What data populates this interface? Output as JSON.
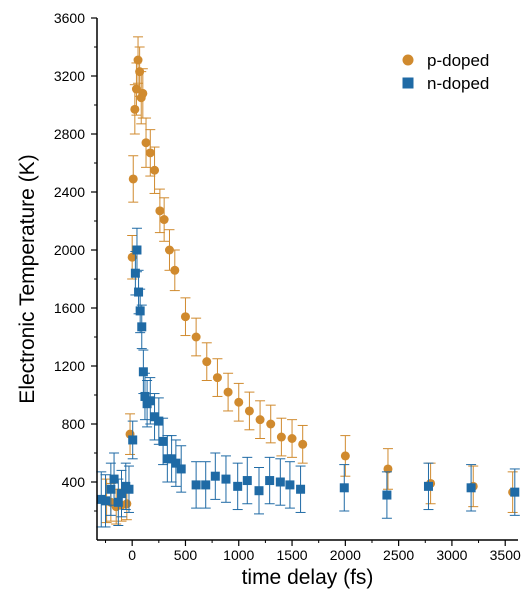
{
  "chart_data": {
    "type": "scatter",
    "title": "",
    "xlabel": "time delay (fs)",
    "ylabel": "Electronic Temperature (K)",
    "xlim": [
      -330,
      3620
    ],
    "ylim": [
      0,
      3600
    ],
    "grid": false,
    "legend_position": "top-right",
    "x_ticks": [
      0,
      500,
      1000,
      1500,
      2000,
      2500,
      3000,
      3500
    ],
    "y_ticks": [
      400,
      800,
      1200,
      1600,
      2000,
      2400,
      2800,
      3200,
      3600
    ],
    "series": [
      {
        "name": "p-doped",
        "marker": "circle",
        "color": "#d08a2e",
        "points": [
          {
            "x": -240,
            "y": 270,
            "err": 150
          },
          {
            "x": -200,
            "y": 260,
            "err": 130
          },
          {
            "x": -150,
            "y": 230,
            "err": 120
          },
          {
            "x": -100,
            "y": 240,
            "err": 110
          },
          {
            "x": -50,
            "y": 250,
            "err": 110
          },
          {
            "x": -20,
            "y": 730,
            "err": 140
          },
          {
            "x": 0,
            "y": 1950,
            "err": 150
          },
          {
            "x": 10,
            "y": 2490,
            "err": 160
          },
          {
            "x": 25,
            "y": 2970,
            "err": 170
          },
          {
            "x": 40,
            "y": 3110,
            "err": 180
          },
          {
            "x": 55,
            "y": 3310,
            "err": 160
          },
          {
            "x": 70,
            "y": 3230,
            "err": 170
          },
          {
            "x": 85,
            "y": 3050,
            "err": 180
          },
          {
            "x": 100,
            "y": 3080,
            "err": 170
          },
          {
            "x": 130,
            "y": 2740,
            "err": 170
          },
          {
            "x": 170,
            "y": 2670,
            "err": 160
          },
          {
            "x": 210,
            "y": 2550,
            "err": 160
          },
          {
            "x": 260,
            "y": 2270,
            "err": 150
          },
          {
            "x": 300,
            "y": 2210,
            "err": 150
          },
          {
            "x": 350,
            "y": 2000,
            "err": 140
          },
          {
            "x": 400,
            "y": 1860,
            "err": 140
          },
          {
            "x": 500,
            "y": 1540,
            "err": 130
          },
          {
            "x": 600,
            "y": 1400,
            "err": 130
          },
          {
            "x": 700,
            "y": 1230,
            "err": 130
          },
          {
            "x": 800,
            "y": 1120,
            "err": 130
          },
          {
            "x": 900,
            "y": 1020,
            "err": 130
          },
          {
            "x": 1000,
            "y": 950,
            "err": 130
          },
          {
            "x": 1100,
            "y": 890,
            "err": 130
          },
          {
            "x": 1200,
            "y": 830,
            "err": 130
          },
          {
            "x": 1300,
            "y": 800,
            "err": 130
          },
          {
            "x": 1400,
            "y": 710,
            "err": 130
          },
          {
            "x": 1500,
            "y": 700,
            "err": 130
          },
          {
            "x": 1600,
            "y": 660,
            "err": 130
          },
          {
            "x": 2000,
            "y": 580,
            "err": 140
          },
          {
            "x": 2400,
            "y": 490,
            "err": 140
          },
          {
            "x": 2800,
            "y": 390,
            "err": 140
          },
          {
            "x": 3200,
            "y": 370,
            "err": 140
          },
          {
            "x": 3570,
            "y": 330,
            "err": 140
          }
        ]
      },
      {
        "name": "n-doped",
        "marker": "square",
        "color": "#1f6aa5",
        "points": [
          {
            "x": -290,
            "y": 280,
            "err": 190
          },
          {
            "x": -250,
            "y": 270,
            "err": 180
          },
          {
            "x": -200,
            "y": 350,
            "err": 180
          },
          {
            "x": -170,
            "y": 420,
            "err": 180
          },
          {
            "x": -130,
            "y": 260,
            "err": 160
          },
          {
            "x": -100,
            "y": 320,
            "err": 160
          },
          {
            "x": -60,
            "y": 370,
            "err": 160
          },
          {
            "x": -30,
            "y": 350,
            "err": 160
          },
          {
            "x": 5,
            "y": 690,
            "err": 130
          },
          {
            "x": 30,
            "y": 1840,
            "err": 150
          },
          {
            "x": 45,
            "y": 2000,
            "err": 150
          },
          {
            "x": 60,
            "y": 1710,
            "err": 150
          },
          {
            "x": 75,
            "y": 1580,
            "err": 150
          },
          {
            "x": 90,
            "y": 1470,
            "err": 150
          },
          {
            "x": 105,
            "y": 1160,
            "err": 150
          },
          {
            "x": 120,
            "y": 990,
            "err": 160
          },
          {
            "x": 140,
            "y": 940,
            "err": 160
          },
          {
            "x": 170,
            "y": 960,
            "err": 160
          },
          {
            "x": 210,
            "y": 850,
            "err": 160
          },
          {
            "x": 250,
            "y": 820,
            "err": 160
          },
          {
            "x": 290,
            "y": 680,
            "err": 160
          },
          {
            "x": 330,
            "y": 560,
            "err": 160
          },
          {
            "x": 370,
            "y": 560,
            "err": 160
          },
          {
            "x": 410,
            "y": 530,
            "err": 160
          },
          {
            "x": 460,
            "y": 490,
            "err": 160
          },
          {
            "x": 600,
            "y": 380,
            "err": 160
          },
          {
            "x": 690,
            "y": 380,
            "err": 160
          },
          {
            "x": 780,
            "y": 440,
            "err": 160
          },
          {
            "x": 880,
            "y": 420,
            "err": 160
          },
          {
            "x": 990,
            "y": 370,
            "err": 160
          },
          {
            "x": 1080,
            "y": 410,
            "err": 160
          },
          {
            "x": 1190,
            "y": 340,
            "err": 160
          },
          {
            "x": 1290,
            "y": 410,
            "err": 160
          },
          {
            "x": 1390,
            "y": 400,
            "err": 160
          },
          {
            "x": 1480,
            "y": 380,
            "err": 160
          },
          {
            "x": 1580,
            "y": 350,
            "err": 160
          },
          {
            "x": 1990,
            "y": 360,
            "err": 160
          },
          {
            "x": 2390,
            "y": 310,
            "err": 160
          },
          {
            "x": 2780,
            "y": 370,
            "err": 160
          },
          {
            "x": 3180,
            "y": 360,
            "err": 160
          },
          {
            "x": 3590,
            "y": 330,
            "err": 160
          }
        ]
      }
    ]
  }
}
